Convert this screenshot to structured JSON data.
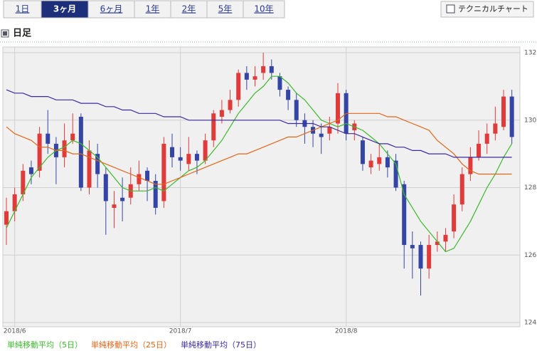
{
  "tabs": [
    "1日",
    "3ヶ月",
    "6ヶ月",
    "1年",
    "2年",
    "5年",
    "10年"
  ],
  "active_tab": 1,
  "technical_button": "テクニカルチャート",
  "heading": "日足",
  "chart_data": {
    "type": "candlestick",
    "categories": [
      null,
      "2018/6",
      null,
      null,
      null,
      null,
      null,
      null,
      null,
      null,
      null,
      null,
      null,
      null,
      null,
      null,
      null,
      null,
      null,
      null,
      null,
      "2018/7",
      null,
      null,
      null,
      null,
      null,
      null,
      null,
      null,
      null,
      null,
      null,
      null,
      null,
      null,
      null,
      null,
      null,
      null,
      null,
      "2018/8",
      null,
      null,
      null,
      null,
      null,
      null,
      null,
      null,
      null,
      null,
      null,
      null,
      null,
      null,
      null,
      null,
      null,
      null,
      null,
      null
    ],
    "open": [
      126.9,
      127.3,
      127.8,
      128.6,
      128.5,
      129.6,
      129.3,
      128.9,
      129.4,
      130.1,
      128.0,
      129.0,
      128.4,
      127.4,
      127.7,
      127.7,
      128.1,
      128.5,
      128.2,
      127.6,
      129.2,
      128.9,
      128.7,
      129.0,
      128.8,
      129.4,
      130.1,
      130.3,
      130.6,
      131.4,
      131.2,
      131.4,
      131.6,
      131.3,
      130.9,
      130.6,
      130.0,
      129.8,
      129.6,
      129.6,
      129.9,
      130.8,
      129.7,
      129.4,
      128.6,
      128.7,
      128.9,
      128.8,
      128.1,
      126.3,
      126.3,
      125.6,
      126.3,
      126.4,
      126.7,
      127.5,
      128.4,
      128.9,
      129.3,
      129.6,
      129.8,
      130.7
    ],
    "high": [
      127.7,
      128.0,
      128.7,
      128.8,
      129.8,
      130.3,
      129.5,
      129.9,
      130.2,
      130.2,
      129.4,
      129.3,
      128.6,
      127.9,
      128.3,
      128.6,
      128.8,
      128.6,
      128.4,
      129.5,
      129.6,
      129.2,
      129.5,
      129.1,
      129.6,
      130.3,
      130.6,
      130.9,
      131.5,
      131.6,
      131.6,
      132.0,
      131.8,
      131.4,
      131.0,
      130.8,
      130.2,
      130.0,
      129.9,
      130.1,
      131.1,
      130.9,
      130.0,
      129.5,
      129.0,
      129.3,
      129.1,
      129.0,
      128.2,
      126.7,
      126.4,
      126.6,
      126.7,
      126.8,
      127.8,
      128.6,
      129.2,
      129.7,
      129.9,
      130.4,
      130.9,
      130.9
    ],
    "low": [
      126.3,
      127.0,
      127.6,
      128.1,
      128.3,
      129.0,
      128.1,
      128.6,
      129.3,
      127.9,
      127.8,
      128.0,
      126.6,
      126.8,
      127.0,
      127.5,
      127.9,
      127.6,
      127.2,
      127.4,
      128.6,
      128.5,
      128.5,
      128.4,
      128.7,
      129.2,
      129.9,
      130.2,
      130.4,
      130.9,
      131.0,
      131.2,
      131.2,
      130.7,
      130.3,
      129.8,
      129.3,
      129.2,
      129.0,
      129.4,
      129.6,
      129.4,
      129.4,
      128.5,
      128.4,
      128.5,
      128.3,
      127.9,
      125.6,
      125.3,
      124.8,
      125.3,
      126.1,
      126.1,
      126.5,
      127.3,
      128.2,
      128.8,
      129.0,
      129.4,
      129.7,
      129.3
    ],
    "close": [
      127.3,
      127.8,
      128.5,
      128.4,
      129.6,
      129.3,
      128.9,
      129.4,
      129.6,
      128.0,
      129.1,
      128.4,
      127.6,
      127.5,
      127.6,
      128.1,
      128.4,
      128.2,
      127.4,
      129.3,
      128.9,
      128.8,
      129.0,
      128.8,
      129.4,
      130.2,
      130.3,
      130.6,
      131.4,
      131.2,
      131.3,
      131.6,
      131.4,
      130.9,
      130.6,
      130.0,
      129.8,
      129.6,
      129.5,
      129.8,
      130.8,
      129.6,
      129.9,
      128.7,
      128.8,
      128.9,
      128.6,
      128.0,
      126.3,
      126.2,
      125.6,
      126.3,
      126.4,
      126.6,
      127.5,
      128.4,
      128.9,
      129.3,
      129.6,
      129.9,
      130.7,
      129.5
    ],
    "up_color": "#e03a3a",
    "down_color": "#3545a5",
    "lines": [
      {
        "name": "単純移動平均（5日）",
        "color": "#3cb82c",
        "values": [
          126.8,
          127.3,
          127.8,
          128.3,
          128.6,
          128.9,
          129.1,
          129.2,
          129.4,
          129.3,
          129.1,
          128.9,
          128.6,
          128.3,
          128.0,
          127.9,
          127.9,
          127.9,
          128.0,
          127.9,
          128.1,
          128.3,
          128.5,
          128.6,
          128.8,
          129.1,
          129.4,
          129.8,
          130.2,
          130.5,
          130.8,
          131.0,
          131.3,
          131.3,
          131.1,
          130.8,
          130.6,
          130.3,
          130.0,
          129.9,
          129.8,
          129.9,
          129.8,
          129.7,
          129.5,
          129.3,
          129.0,
          128.7,
          127.8,
          127.4,
          127.0,
          126.7,
          126.4,
          126.1,
          126.2,
          126.6,
          127.0,
          127.5,
          128.0,
          128.4,
          128.9,
          129.3
        ]
      },
      {
        "name": "単純移動平均（25日）",
        "color": "#e0661a",
        "values": [
          129.8,
          129.6,
          129.5,
          129.4,
          129.2,
          129.2,
          129.1,
          129.1,
          129.0,
          129.0,
          128.9,
          128.8,
          128.7,
          128.6,
          128.5,
          128.4,
          128.3,
          128.2,
          128.1,
          128.1,
          128.2,
          128.3,
          128.4,
          128.5,
          128.6,
          128.7,
          128.8,
          128.9,
          129.0,
          129.0,
          129.1,
          129.2,
          129.3,
          129.4,
          129.5,
          129.5,
          129.6,
          129.7,
          129.8,
          129.9,
          130.0,
          130.2,
          130.2,
          130.2,
          130.2,
          130.2,
          130.1,
          130.1,
          130.0,
          129.9,
          129.8,
          129.7,
          129.4,
          129.2,
          129.0,
          128.7,
          128.5,
          128.4,
          128.4,
          128.4,
          128.4,
          128.4
        ]
      },
      {
        "name": "単純移動平均（75日）",
        "color": "#3a2a9c",
        "values": [
          130.9,
          130.8,
          130.8,
          130.7,
          130.7,
          130.7,
          130.6,
          130.6,
          130.6,
          130.5,
          130.5,
          130.5,
          130.4,
          130.4,
          130.3,
          130.3,
          130.2,
          130.2,
          130.2,
          130.1,
          130.1,
          130.1,
          130.0,
          130.0,
          130.0,
          130.0,
          130.0,
          130.0,
          130.0,
          130.0,
          130.0,
          130.0,
          130.0,
          130.0,
          129.9,
          129.9,
          129.9,
          129.9,
          129.8,
          129.8,
          129.7,
          129.6,
          129.6,
          129.5,
          129.4,
          129.3,
          129.3,
          129.2,
          129.2,
          129.1,
          129.1,
          129.0,
          129.0,
          129.0,
          128.9,
          128.9,
          128.9,
          128.9,
          128.9,
          128.9,
          128.9,
          128.9
        ]
      }
    ],
    "ylim": [
      124,
      132
    ],
    "yticks": [
      124,
      126,
      128,
      130,
      132
    ],
    "grid": true
  }
}
